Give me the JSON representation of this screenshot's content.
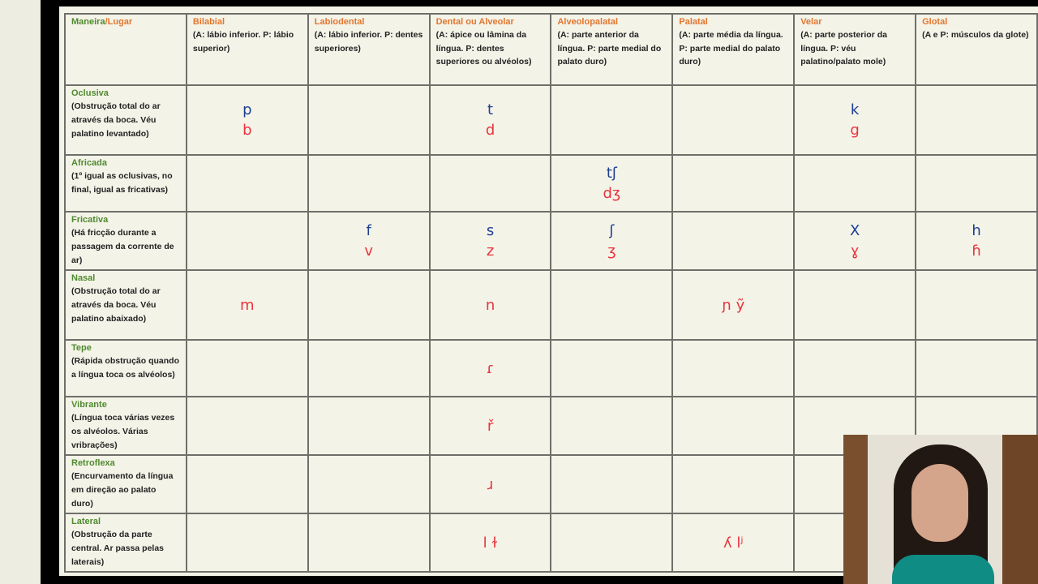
{
  "header_corner": {
    "part1": "Maneira",
    "slash": "/",
    "part2": "Lugar"
  },
  "columns": [
    {
      "name": "Bilabial",
      "desc": "(A: lábio inferior. P: lábio superior)"
    },
    {
      "name": "Labiodental",
      "desc": "(A: lábio inferior. P: dentes superiores)"
    },
    {
      "name": "Dental ou Alveolar",
      "desc": "(A: ápice ou lâmina da língua. P: dentes superiores ou alvéolos)"
    },
    {
      "name": "Alveolopalatal",
      "desc": "(A: parte anterior da língua. P: parte medial do palato duro)"
    },
    {
      "name": "Palatal",
      "desc": "(A: parte média da língua. P: parte medial do palato duro)"
    },
    {
      "name": "Velar",
      "desc": "(A: parte posterior da língua. P: véu palatino/palato mole)"
    },
    {
      "name": "Glotal",
      "desc": "(A e P: músculos da glote)"
    }
  ],
  "rows": [
    {
      "name": "Oclusiva",
      "desc": "(Obstrução total do ar através da boca. Véu palatino levantado)",
      "cells": [
        [
          "p",
          "b"
        ],
        [],
        [
          "t",
          "d"
        ],
        [],
        [],
        [
          "k",
          "g"
        ],
        []
      ]
    },
    {
      "name": "Africada",
      "desc": "(1º igual as oclusivas, no final, igual as fricativas)",
      "cells": [
        [],
        [],
        [],
        [
          "tʃ",
          "dʒ"
        ],
        [],
        [],
        []
      ]
    },
    {
      "name": "Fricativa",
      "desc": "(Há fricção durante a passagem da corrente de ar)",
      "cells": [
        [],
        [
          "f",
          "v"
        ],
        [
          "s",
          "z"
        ],
        [
          "ʃ",
          "ʒ"
        ],
        [],
        [
          "X",
          "ɣ"
        ],
        [
          "h",
          "ɦ"
        ]
      ]
    },
    {
      "name": "Nasal",
      "desc": "(Obstrução total do ar através da boca. Véu palatino abaixado)",
      "cells": [
        [
          "",
          "m"
        ],
        [],
        [
          "",
          "n"
        ],
        [],
        [
          "",
          "ɲ  ỹ"
        ],
        [],
        []
      ]
    },
    {
      "name": "Tepe",
      "desc": "(Rápida obstrução quando a língua toca os alvéolos)",
      "cells": [
        [],
        [],
        [
          "",
          "ɾ"
        ],
        [],
        [],
        [],
        []
      ]
    },
    {
      "name": "Vibrante",
      "desc": "(Língua toca várias vezes os alvéolos. Várias vribrações)",
      "cells": [
        [],
        [],
        [
          "",
          "ř"
        ],
        [],
        [],
        [],
        []
      ]
    },
    {
      "name": "Retroflexa",
      "desc": "(Encurvamento da língua em direção ao palato duro)",
      "cells": [
        [],
        [],
        [
          "",
          "ɹ"
        ],
        [],
        [],
        [],
        []
      ]
    },
    {
      "name": "Lateral",
      "desc": "(Obstrução da parte central. Ar passa pelas laterais)",
      "cells": [
        [],
        [],
        [
          "",
          "l  ɫ"
        ],
        [],
        [
          "",
          "ʎ lʲ"
        ],
        [],
        []
      ]
    }
  ],
  "colors": {
    "row_label": "#4f8a2f",
    "column_label": "#e2762f",
    "voiceless": "#1c3f94",
    "voiced": "#e8343c"
  }
}
